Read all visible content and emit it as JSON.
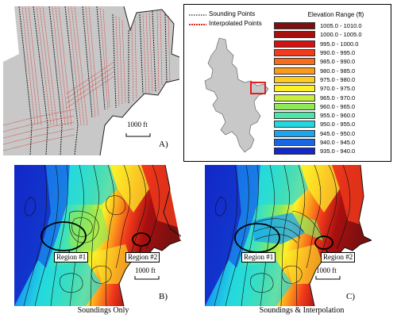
{
  "panel_a": {
    "label": "A)",
    "scale": "1000 ft"
  },
  "legend": {
    "sounding_label": "Sounding Points",
    "interpolated_label": "Interpolated Points",
    "elevation_title": "Elevation Range (ft)",
    "ranges": [
      {
        "label": "1005.0 - 1010.0",
        "color": "#7a1010"
      },
      {
        "label": "1000.0 - 1005.0",
        "color": "#a80f0f"
      },
      {
        "label": "995.0 - 1000.0",
        "color": "#d41212"
      },
      {
        "label": "990.0 - 995.0",
        "color": "#f23b1c"
      },
      {
        "label": "985.0 - 990.0",
        "color": "#f76b1a"
      },
      {
        "label": "980.0 - 985.0",
        "color": "#fb9b1c"
      },
      {
        "label": "975.0 - 980.0",
        "color": "#fccc22"
      },
      {
        "label": "970.0 - 975.0",
        "color": "#fcf028"
      },
      {
        "label": "965.0 - 970.0",
        "color": "#c8f03a"
      },
      {
        "label": "960.0 - 965.0",
        "color": "#8ee85a"
      },
      {
        "label": "955.0 - 960.0",
        "color": "#4ee6a6"
      },
      {
        "label": "950.0 - 955.0",
        "color": "#22d8e0"
      },
      {
        "label": "945.0 - 950.0",
        "color": "#1aa6ee"
      },
      {
        "label": "940.0 - 945.0",
        "color": "#1666e6"
      },
      {
        "label": "935.0 - 940.0",
        "color": "#1228c8"
      }
    ]
  },
  "panel_b": {
    "label": "B)",
    "caption": "Soundings Only",
    "region1": "Region #1",
    "region2": "Region #2",
    "scale": "1000 ft"
  },
  "panel_c": {
    "label": "C)",
    "caption": "Soundings & Interpolation",
    "region1": "Region #1",
    "region2": "Region #2",
    "scale": "1000 ft"
  }
}
